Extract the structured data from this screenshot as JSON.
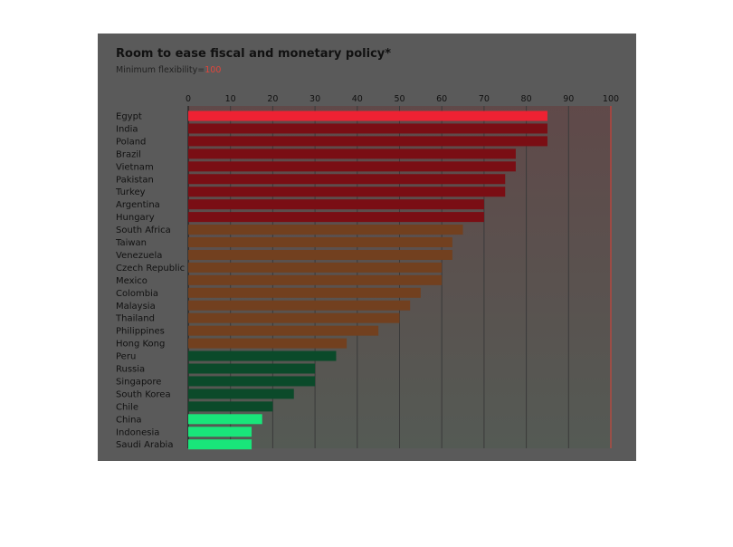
{
  "chart_data": {
    "type": "bar",
    "orientation": "horizontal",
    "title": "Room to ease fiscal and monetary policy*",
    "subtitle_prefix": "Minimum flexibility=",
    "subtitle_value": "100",
    "xlim": [
      0,
      100
    ],
    "xticks": [
      "0",
      "10",
      "20",
      "30",
      "40",
      "50",
      "60",
      "70",
      "80",
      "90",
      "100"
    ],
    "categories": [
      "Egypt",
      "India",
      "Poland",
      "Brazil",
      "Vietnam",
      "Pakistan",
      "Turkey",
      "Argentina",
      "Hungary",
      "South Africa",
      "Taiwan",
      "Venezuela",
      "Czech Republic",
      "Mexico",
      "Colombia",
      "Malaysia",
      "Thailand",
      "Philippines",
      "Hong Kong",
      "Peru",
      "Russia",
      "Singapore",
      "South Korea",
      "Chile",
      "China",
      "Indonesia",
      "Saudi Arabia"
    ],
    "values": [
      85,
      85,
      85,
      77.5,
      77.5,
      75,
      75,
      70,
      70,
      65,
      62.5,
      62.5,
      60,
      60,
      55,
      52.5,
      50,
      45,
      37.5,
      35,
      30,
      30,
      25,
      20,
      17.5,
      15,
      15
    ],
    "bar_colors": [
      "#ee2233",
      "#7a0e14",
      "#7a0e14",
      "#7a0e14",
      "#7a0e14",
      "#7a0e14",
      "#7a0e14",
      "#7a0e14",
      "#7a0e14",
      "#72401f",
      "#72401f",
      "#72401f",
      "#72401f",
      "#72401f",
      "#72401f",
      "#72401f",
      "#72401f",
      "#72401f",
      "#72401f",
      "#0b4a2a",
      "#0b4a2a",
      "#0b4a2a",
      "#0b4a2a",
      "#0b4a2a",
      "#19e57a",
      "#19e57a",
      "#19e57a"
    ],
    "colors": {
      "panel": "#5a5a5a",
      "highlight": "#e0453b",
      "gridline": "#3a3a3a"
    }
  }
}
